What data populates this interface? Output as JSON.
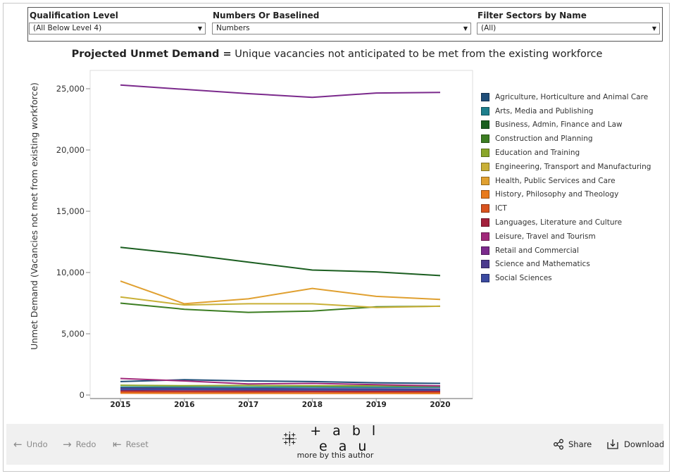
{
  "filters": [
    {
      "label": "Qualification Level",
      "value": "(All Below Level 4)"
    },
    {
      "label": "Numbers Or Baselined",
      "value": "Numbers"
    },
    {
      "label": "Filter Sectors by Name",
      "value": "(All)"
    }
  ],
  "chart_title": {
    "bold": "Projected Unmet Demand =",
    "rest": " Unique vacancies not anticipated to be met from the existing workforce"
  },
  "toolbar": {
    "undo": "Undo",
    "redo": "Redo",
    "reset": "Reset",
    "share": "Share",
    "download": "Download",
    "logo": "+ a b l e a u",
    "more_by_author": "more by this author"
  },
  "chart_data": {
    "type": "line",
    "title": "",
    "xlabel": "",
    "ylabel": "Unmet Demand (Vacancies not met from existing workforce)",
    "x": [
      "2015",
      "2016",
      "2017",
      "2018",
      "2019",
      "2020"
    ],
    "ylim": [
      0,
      26500
    ],
    "yticks": [
      0,
      5000,
      10000,
      15000,
      20000,
      25000
    ],
    "ytick_labels": [
      "0",
      "5,000",
      "10,000",
      "15,000",
      "20,000",
      "25,000"
    ],
    "grid": false,
    "legend_position": "right",
    "series": [
      {
        "name": "Agriculture, Horticulture and Animal Care",
        "color": "#1f4e79",
        "values": [
          1100,
          1250,
          1150,
          1100,
          1000,
          950
        ]
      },
      {
        "name": "Arts, Media and Publishing",
        "color": "#1e7f8c",
        "values": [
          650,
          650,
          640,
          650,
          640,
          640
        ]
      },
      {
        "name": "Business, Admin, Finance and Law",
        "color": "#1b5e20",
        "values": [
          12050,
          11500,
          10850,
          10200,
          10050,
          9750
        ]
      },
      {
        "name": "Construction and Planning",
        "color": "#3c7d22",
        "values": [
          7500,
          7000,
          6750,
          6850,
          7200,
          7250
        ]
      },
      {
        "name": "Education and Training",
        "color": "#8aa62a",
        "values": [
          800,
          760,
          780,
          750,
          760,
          720
        ]
      },
      {
        "name": "Engineering, Transport and Manufacturing",
        "color": "#c9b037",
        "values": [
          8000,
          7350,
          7450,
          7450,
          7150,
          7250
        ]
      },
      {
        "name": "Health, Public Services and Care",
        "color": "#e0a030",
        "values": [
          9300,
          7450,
          7850,
          8700,
          8050,
          7800
        ]
      },
      {
        "name": "History, Philosophy and Theology",
        "color": "#e87a1c",
        "values": [
          150,
          140,
          140,
          130,
          130,
          120
        ]
      },
      {
        "name": "ICT",
        "color": "#d9531e",
        "values": [
          250,
          240,
          230,
          240,
          230,
          220
        ]
      },
      {
        "name": "Languages, Literature and Culture",
        "color": "#a3203c",
        "values": [
          350,
          330,
          320,
          310,
          300,
          300
        ]
      },
      {
        "name": "Leisure, Travel and Tourism",
        "color": "#a0287a",
        "values": [
          1350,
          1150,
          900,
          950,
          850,
          750
        ]
      },
      {
        "name": "Retail and Commercial",
        "color": "#7b2a8c",
        "values": [
          25300,
          24950,
          24600,
          24300,
          24650,
          24700
        ]
      },
      {
        "name": "Science and Mathematics",
        "color": "#4b3a8c",
        "values": [
          550,
          540,
          520,
          510,
          500,
          490
        ]
      },
      {
        "name": "Social Sciences",
        "color": "#3b4aa0",
        "values": [
          450,
          440,
          430,
          420,
          410,
          400
        ]
      }
    ]
  }
}
